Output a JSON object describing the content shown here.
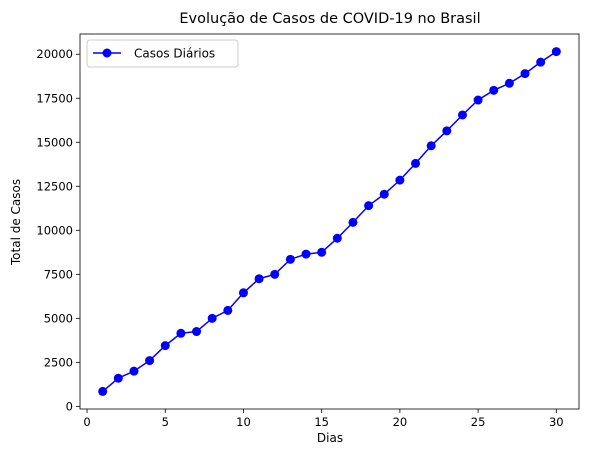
{
  "chart_data": {
    "type": "line",
    "title": "Evolução de Casos de COVID-19 no Brasil",
    "xlabel": "Dias",
    "ylabel": "Total de Casos",
    "xlim": [
      -0.45,
      31.45
    ],
    "ylim": [
      -150,
      21150
    ],
    "xticks": [
      0,
      5,
      10,
      15,
      20,
      25,
      30
    ],
    "yticks": [
      0,
      2500,
      5000,
      7500,
      10000,
      12500,
      15000,
      17500,
      20000
    ],
    "grid": false,
    "legend": "top-left",
    "series": [
      {
        "name": "Casos Diários",
        "color": "#0000ff",
        "marker": "circle",
        "x": [
          1,
          2,
          3,
          4,
          5,
          6,
          7,
          8,
          9,
          10,
          11,
          12,
          13,
          14,
          15,
          16,
          17,
          18,
          19,
          20,
          21,
          22,
          23,
          24,
          25,
          26,
          27,
          28,
          29,
          30
        ],
        "y": [
          850,
          1600,
          2000,
          2600,
          3450,
          4150,
          4250,
          5000,
          5450,
          6450,
          7250,
          7500,
          8350,
          8650,
          8750,
          9550,
          10450,
          11400,
          12050,
          12850,
          13800,
          14800,
          15650,
          16550,
          17400,
          17950,
          18350,
          18900,
          19550,
          20150
        ]
      }
    ]
  }
}
